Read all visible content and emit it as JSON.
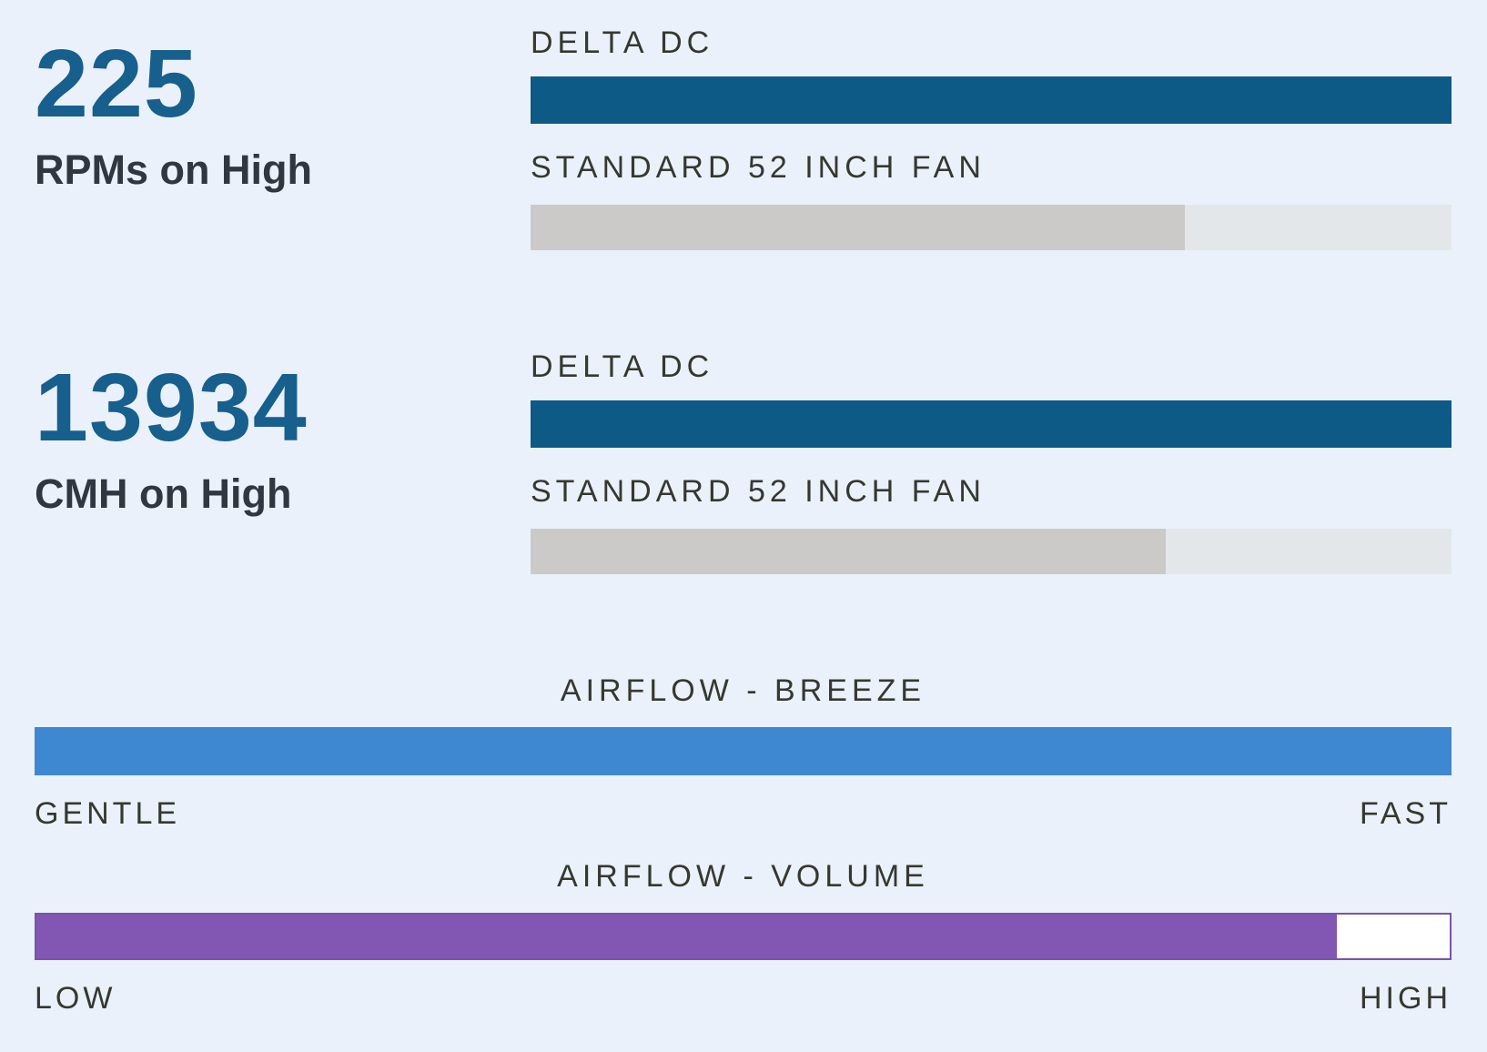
{
  "colors": {
    "background": "#eaf1fa",
    "delta_bar_blue": "#0e5a87",
    "stat_number_blue": "#175f8d",
    "standard_bar_gray_fill": "#cbcac8",
    "standard_bar_gray_track": "#e4e7ea",
    "breeze_slider_blue": "#3d88d1",
    "volume_slider_purple": "#8157b3",
    "volume_track_border": "#7a52ad",
    "uppercase_label_text": "#363830",
    "stat_unit_text": "#2f3740"
  },
  "comparisons": [
    {
      "value": "225",
      "unit": "RPMs on High",
      "bars": [
        {
          "label": "DELTA DC",
          "fill_percent": 100
        },
        {
          "label": "STANDARD 52 INCH FAN",
          "fill_percent": 71
        }
      ]
    },
    {
      "value": "13934",
      "unit": "CMH on High",
      "bars": [
        {
          "label": "DELTA DC",
          "fill_percent": 100
        },
        {
          "label": "STANDARD 52 INCH FAN",
          "fill_percent": 69
        }
      ]
    }
  ],
  "sliders": [
    {
      "title": "AIRFLOW - BREEZE",
      "left_label": "GENTLE",
      "right_label": "FAST",
      "fill_percent": 100
    },
    {
      "title": "AIRFLOW - VOLUME",
      "left_label": "LOW",
      "right_label": "HIGH",
      "fill_percent": 92
    }
  ],
  "chart_data": [
    {
      "type": "bar",
      "title": "RPMs on High",
      "headline_value": 225,
      "categories": [
        "DELTA DC",
        "STANDARD 52 INCH FAN"
      ],
      "fill_percent": [
        100,
        71
      ],
      "estimated_values": [
        225,
        160
      ],
      "orientation": "horizontal",
      "grid": false
    },
    {
      "type": "bar",
      "title": "CMH on High",
      "headline_value": 13934,
      "categories": [
        "DELTA DC",
        "STANDARD 52 INCH FAN"
      ],
      "fill_percent": [
        100,
        69
      ],
      "estimated_values": [
        13934,
        9600
      ],
      "orientation": "horizontal",
      "grid": false
    },
    {
      "type": "bar",
      "title": "AIRFLOW - BREEZE",
      "categories": [
        "AIRFLOW - BREEZE"
      ],
      "fill_percent": [
        100
      ],
      "scale_min_label": "GENTLE",
      "scale_max_label": "FAST",
      "orientation": "horizontal",
      "grid": false
    },
    {
      "type": "bar",
      "title": "AIRFLOW - VOLUME",
      "categories": [
        "AIRFLOW - VOLUME"
      ],
      "fill_percent": [
        92
      ],
      "scale_min_label": "LOW",
      "scale_max_label": "HIGH",
      "orientation": "horizontal",
      "grid": false
    }
  ]
}
